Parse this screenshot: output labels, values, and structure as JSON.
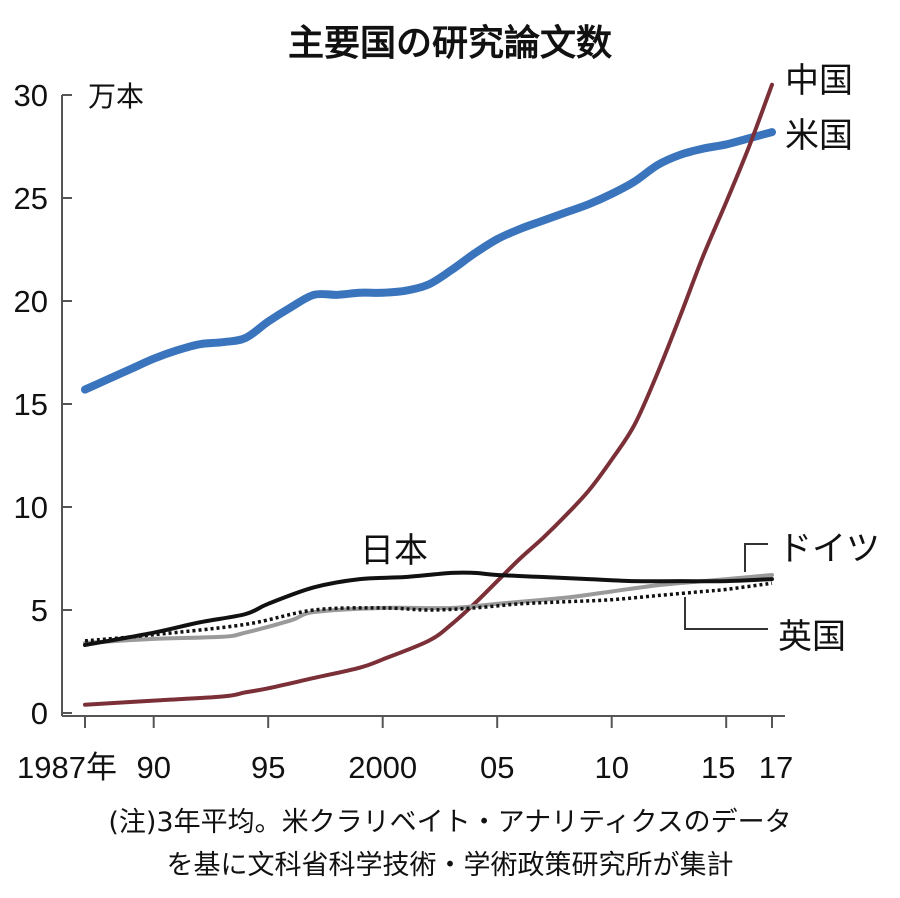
{
  "chart_data": {
    "type": "line",
    "title": "主要国の研究論文数",
    "ylabel": "万本",
    "xlabel": "",
    "ylim": [
      0,
      30
    ],
    "xlim": [
      1987,
      2017
    ],
    "yticks": [
      "0",
      "5",
      "10",
      "15",
      "20",
      "25",
      "30"
    ],
    "xticks": [
      {
        "value": 1987,
        "label": "1987年"
      },
      {
        "value": 1990,
        "label": "90"
      },
      {
        "value": 1995,
        "label": "95"
      },
      {
        "value": 2000,
        "label": "2000"
      },
      {
        "value": 2005,
        "label": "05"
      },
      {
        "value": 2010,
        "label": "10"
      },
      {
        "value": 2015,
        "label": "15"
      },
      {
        "value": 2017,
        "label": "17"
      }
    ],
    "grid": false,
    "series": [
      {
        "name": "米国",
        "color": "#3a74bd",
        "style": "solid-thick",
        "x": [
          1987,
          1988,
          1989,
          1990,
          1991,
          1992,
          1993,
          1994,
          1995,
          1996,
          1997,
          1998,
          1999,
          2000,
          2001,
          2002,
          2003,
          2004,
          2005,
          2006,
          2007,
          2008,
          2009,
          2010,
          2011,
          2012,
          2013,
          2014,
          2015,
          2016,
          2017
        ],
        "y": [
          15.7,
          16.2,
          16.7,
          17.2,
          17.6,
          17.9,
          18.0,
          18.2,
          19.0,
          19.7,
          20.3,
          20.3,
          20.4,
          20.4,
          20.5,
          20.8,
          21.5,
          22.3,
          23.0,
          23.5,
          23.9,
          24.3,
          24.7,
          25.2,
          25.8,
          26.6,
          27.1,
          27.4,
          27.6,
          27.9,
          28.2
        ]
      },
      {
        "name": "中国",
        "color": "#7b2f37",
        "style": "solid",
        "x": [
          1987,
          1990,
          1993,
          1994,
          1995,
          1997,
          1999,
          2000,
          2002,
          2003,
          2004,
          2005,
          2006,
          2007,
          2008,
          2009,
          2010,
          2011,
          2012,
          2013,
          2014,
          2015,
          2016,
          2017
        ],
        "y": [
          0.4,
          0.6,
          0.8,
          1.0,
          1.2,
          1.7,
          2.2,
          2.6,
          3.5,
          4.3,
          5.3,
          6.4,
          7.5,
          8.5,
          9.6,
          10.8,
          12.3,
          14.0,
          16.5,
          19.3,
          22.2,
          24.8,
          27.5,
          30.5
        ]
      },
      {
        "name": "ドイツ",
        "color": "#9a9a9a",
        "style": "solid",
        "x": [
          1987,
          1990,
          1993,
          1994,
          1996,
          1997,
          2000,
          2003,
          2005,
          2008,
          2010,
          2012,
          2014,
          2015,
          2017
        ],
        "y": [
          3.4,
          3.6,
          3.7,
          3.9,
          4.5,
          4.9,
          5.1,
          5.1,
          5.3,
          5.6,
          5.9,
          6.2,
          6.4,
          6.5,
          6.7
        ]
      },
      {
        "name": "英国",
        "color": "#111111",
        "style": "dotted",
        "x": [
          1987,
          1990,
          1994,
          1997,
          2000,
          2002,
          2004,
          2006,
          2008,
          2010,
          2012,
          2014,
          2015,
          2017
        ],
        "y": [
          3.5,
          3.8,
          4.3,
          5.0,
          5.1,
          5.0,
          5.1,
          5.3,
          5.4,
          5.5,
          5.7,
          5.9,
          6.0,
          6.3
        ]
      },
      {
        "name": "日本",
        "color": "#111111",
        "style": "solid",
        "x": [
          1987,
          1990,
          1992,
          1994,
          1995,
          1997,
          1999,
          2001,
          2003,
          2004,
          2005,
          2007,
          2009,
          2011,
          2013,
          2015,
          2017
        ],
        "y": [
          3.3,
          3.9,
          4.4,
          4.8,
          5.3,
          6.1,
          6.5,
          6.6,
          6.8,
          6.8,
          6.7,
          6.6,
          6.5,
          6.4,
          6.4,
          6.4,
          6.5
        ]
      }
    ],
    "notes": [
      "(注)3年平均。米クラリベイト・アナリティクスのデータ",
      "を基に文科省科学技術・学術政策研究所が集計"
    ]
  }
}
